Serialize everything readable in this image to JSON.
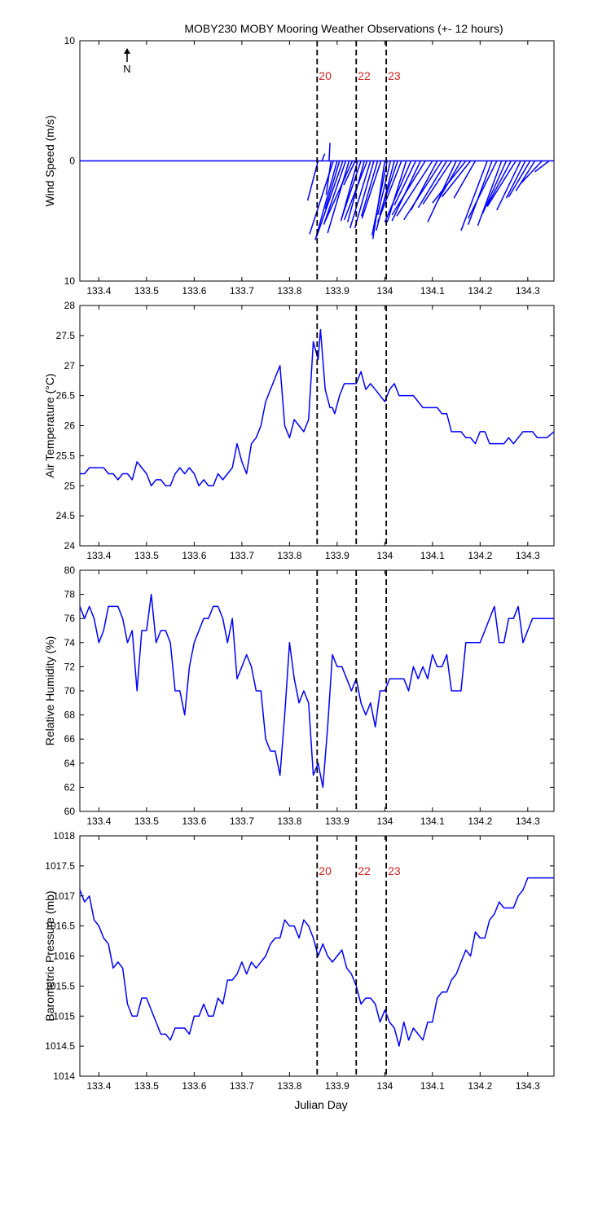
{
  "figure_title": "MOBY230 MOBY Mooring Weather Observations (+- 12 hours)",
  "x_axis_label": "Julian Day",
  "north_label": "N",
  "colors": {
    "series": "#0000ff",
    "marker_label": "#cc2222",
    "axes": "#000000"
  },
  "chart_data": [
    {
      "type": "quiver",
      "ylabel": "Wind Speed (m/s)",
      "xlim": [
        133.36,
        134.355
      ],
      "ylim": [
        -10,
        10
      ],
      "yticks": [
        10,
        0,
        10
      ],
      "xticks": [
        133.4,
        133.5,
        133.6,
        133.7,
        133.8,
        133.9,
        134,
        134.1,
        134.2,
        134.3
      ],
      "markers": [
        {
          "x": 133.858,
          "label": "20"
        },
        {
          "x": 133.94,
          "label": "22"
        },
        {
          "x": 134.003,
          "label": "23"
        }
      ],
      "vectors": [
        {
          "x": 133.86,
          "u": -0.022,
          "v": -3.3
        },
        {
          "x": 133.868,
          "u": 0.006,
          "v": 0.6
        },
        {
          "x": 133.883,
          "u": 0.002,
          "v": 1.5
        },
        {
          "x": 133.887,
          "u": -0.01,
          "v": -2.8
        },
        {
          "x": 133.892,
          "u": -0.05,
          "v": -6.1
        },
        {
          "x": 133.9,
          "u": -0.046,
          "v": -6.6
        },
        {
          "x": 133.905,
          "u": -0.03,
          "v": -4.0
        },
        {
          "x": 133.912,
          "u": -0.055,
          "v": -6.3
        },
        {
          "x": 133.918,
          "u": -0.046,
          "v": -5.3
        },
        {
          "x": 133.925,
          "u": -0.045,
          "v": -6.0
        },
        {
          "x": 133.932,
          "u": -0.058,
          "v": -5.1
        },
        {
          "x": 133.938,
          "u": -0.024,
          "v": -2.0
        },
        {
          "x": 133.943,
          "u": -0.035,
          "v": -5.0
        },
        {
          "x": 133.95,
          "u": -0.04,
          "v": -4.7
        },
        {
          "x": 133.957,
          "u": -0.035,
          "v": -5.1
        },
        {
          "x": 133.963,
          "u": -0.048,
          "v": -4.9
        },
        {
          "x": 133.97,
          "u": -0.043,
          "v": -5.6
        },
        {
          "x": 133.977,
          "u": -0.04,
          "v": -5.6
        },
        {
          "x": 133.985,
          "u": -0.034,
          "v": -4.6
        },
        {
          "x": 133.992,
          "u": -0.04,
          "v": -4.8
        },
        {
          "x": 134.0,
          "u": -0.025,
          "v": -6.5
        },
        {
          "x": 134.005,
          "u": -0.032,
          "v": -6.2
        },
        {
          "x": 134.012,
          "u": -0.027,
          "v": -4.5
        },
        {
          "x": 134.02,
          "u": -0.038,
          "v": -5.8
        },
        {
          "x": 134.027,
          "u": -0.038,
          "v": -4.5
        },
        {
          "x": 134.035,
          "u": -0.05,
          "v": -5.1
        },
        {
          "x": 134.045,
          "u": -0.04,
          "v": -5.1
        },
        {
          "x": 134.055,
          "u": -0.055,
          "v": -5.1
        },
        {
          "x": 134.065,
          "u": -0.045,
          "v": -3.7
        },
        {
          "x": 134.075,
          "u": -0.06,
          "v": -5.0
        },
        {
          "x": 134.085,
          "u": -0.07,
          "v": -4.5
        },
        {
          "x": 134.1,
          "u": -0.075,
          "v": -4.6
        },
        {
          "x": 134.11,
          "u": -0.055,
          "v": -4.1
        },
        {
          "x": 134.12,
          "u": -0.08,
          "v": -4.9
        },
        {
          "x": 134.13,
          "u": -0.06,
          "v": -3.9
        },
        {
          "x": 134.14,
          "u": -0.06,
          "v": -3.6
        },
        {
          "x": 134.15,
          "u": -0.06,
          "v": -5.1
        },
        {
          "x": 134.16,
          "u": -0.05,
          "v": -3.4
        },
        {
          "x": 134.17,
          "u": -0.07,
          "v": -3.5
        },
        {
          "x": 134.18,
          "u": -0.06,
          "v": -3.0
        },
        {
          "x": 134.19,
          "u": -0.045,
          "v": -3.1
        },
        {
          "x": 134.215,
          "u": -0.055,
          "v": -5.8
        },
        {
          "x": 134.225,
          "u": -0.05,
          "v": -5.3
        },
        {
          "x": 134.235,
          "u": -0.06,
          "v": -4.8
        },
        {
          "x": 134.245,
          "u": -0.05,
          "v": -5.4
        },
        {
          "x": 134.255,
          "u": -0.05,
          "v": -4.4
        },
        {
          "x": 134.265,
          "u": -0.05,
          "v": -3.7
        },
        {
          "x": 134.275,
          "u": -0.06,
          "v": -3.8
        },
        {
          "x": 134.285,
          "u": -0.05,
          "v": -4.1
        },
        {
          "x": 134.295,
          "u": -0.04,
          "v": -3.1
        },
        {
          "x": 134.305,
          "u": -0.045,
          "v": -3.0
        },
        {
          "x": 134.315,
          "u": -0.04,
          "v": -2.5
        },
        {
          "x": 134.33,
          "u": -0.045,
          "v": -1.9
        },
        {
          "x": 134.345,
          "u": -0.03,
          "v": -0.9
        }
      ]
    },
    {
      "type": "line",
      "ylabel": "Air Temperature (°C)",
      "xlim": [
        133.36,
        134.355
      ],
      "ylim": [
        24,
        28
      ],
      "yticks": [
        24,
        24.5,
        25,
        25.5,
        26,
        26.5,
        27,
        27.5,
        28
      ],
      "xticks": [
        133.4,
        133.5,
        133.6,
        133.7,
        133.8,
        133.9,
        134,
        134.1,
        134.2,
        134.3
      ],
      "markers": [
        {
          "x": 133.858
        },
        {
          "x": 133.94
        },
        {
          "x": 134.003
        }
      ],
      "x": [
        133.36,
        133.37,
        133.38,
        133.39,
        133.4,
        133.41,
        133.42,
        133.43,
        133.44,
        133.45,
        133.46,
        133.47,
        133.48,
        133.49,
        133.5,
        133.51,
        133.52,
        133.53,
        133.54,
        133.55,
        133.56,
        133.57,
        133.58,
        133.59,
        133.6,
        133.61,
        133.62,
        133.63,
        133.64,
        133.65,
        133.66,
        133.67,
        133.68,
        133.69,
        133.7,
        133.71,
        133.72,
        133.73,
        133.74,
        133.75,
        133.76,
        133.77,
        133.78,
        133.79,
        133.8,
        133.81,
        133.82,
        133.83,
        133.84,
        133.85,
        133.86,
        133.865,
        133.875,
        133.885,
        133.89,
        133.895,
        133.905,
        133.915,
        133.925,
        133.935,
        133.94,
        133.95,
        133.96,
        133.97,
        133.98,
        133.99,
        134,
        134.01,
        134.02,
        134.03,
        134.04,
        134.05,
        134.06,
        134.07,
        134.08,
        134.09,
        134.1,
        134.11,
        134.12,
        134.13,
        134.14,
        134.15,
        134.16,
        134.17,
        134.18,
        134.19,
        134.2,
        134.21,
        134.22,
        134.23,
        134.24,
        134.25,
        134.26,
        134.27,
        134.28,
        134.29,
        134.3,
        134.31,
        134.32,
        134.33,
        134.34,
        134.355
      ],
      "y": [
        25.2,
        25.2,
        25.3,
        25.3,
        25.3,
        25.3,
        25.2,
        25.2,
        25.1,
        25.2,
        25.2,
        25.1,
        25.4,
        25.3,
        25.2,
        25.0,
        25.1,
        25.1,
        25.0,
        25.0,
        25.2,
        25.3,
        25.2,
        25.3,
        25.2,
        25.0,
        25.1,
        25.0,
        25.0,
        25.2,
        25.1,
        25.2,
        25.3,
        25.7,
        25.4,
        25.2,
        25.7,
        25.8,
        26.0,
        26.4,
        26.6,
        26.8,
        27.0,
        26.0,
        25.8,
        26.1,
        26.0,
        25.9,
        26.1,
        27.4,
        27.1,
        27.6,
        26.6,
        26.3,
        26.3,
        26.2,
        26.5,
        26.7,
        26.7,
        26.7,
        26.7,
        26.9,
        26.6,
        26.7,
        26.6,
        26.5,
        26.4,
        26.6,
        26.7,
        26.5,
        26.5,
        26.5,
        26.5,
        26.4,
        26.3,
        26.3,
        26.3,
        26.3,
        26.2,
        26.2,
        25.9,
        25.9,
        25.9,
        25.8,
        25.8,
        25.7,
        25.9,
        25.9,
        25.7,
        25.7,
        25.7,
        25.7,
        25.8,
        25.7,
        25.8,
        25.9,
        25.9,
        25.9,
        25.8,
        25.8,
        25.8,
        25.9
      ]
    },
    {
      "type": "line",
      "ylabel": "Relative Humidity (%)",
      "xlim": [
        133.36,
        134.355
      ],
      "ylim": [
        60,
        80
      ],
      "yticks": [
        60,
        62,
        64,
        66,
        68,
        70,
        72,
        74,
        76,
        78,
        80
      ],
      "xticks": [
        133.4,
        133.5,
        133.6,
        133.7,
        133.8,
        133.9,
        134,
        134.1,
        134.2,
        134.3
      ],
      "markers": [
        {
          "x": 133.858
        },
        {
          "x": 133.94
        },
        {
          "x": 134.003
        }
      ],
      "x": [
        133.36,
        133.37,
        133.38,
        133.39,
        133.4,
        133.41,
        133.42,
        133.43,
        133.44,
        133.45,
        133.46,
        133.47,
        133.48,
        133.49,
        133.5,
        133.51,
        133.52,
        133.53,
        133.54,
        133.55,
        133.56,
        133.57,
        133.58,
        133.59,
        133.6,
        133.61,
        133.62,
        133.63,
        133.64,
        133.65,
        133.66,
        133.67,
        133.68,
        133.69,
        133.7,
        133.71,
        133.72,
        133.73,
        133.74,
        133.75,
        133.76,
        133.77,
        133.78,
        133.79,
        133.8,
        133.81,
        133.82,
        133.83,
        133.84,
        133.85,
        133.86,
        133.87,
        133.88,
        133.89,
        133.9,
        133.91,
        133.92,
        133.93,
        133.94,
        133.95,
        133.96,
        133.97,
        133.98,
        133.99,
        134,
        134.01,
        134.02,
        134.03,
        134.04,
        134.05,
        134.06,
        134.07,
        134.08,
        134.09,
        134.1,
        134.11,
        134.12,
        134.13,
        134.14,
        134.15,
        134.16,
        134.17,
        134.18,
        134.19,
        134.2,
        134.21,
        134.22,
        134.23,
        134.24,
        134.25,
        134.26,
        134.27,
        134.28,
        134.29,
        134.3,
        134.31,
        134.32,
        134.33,
        134.34,
        134.355
      ],
      "y": [
        77,
        76,
        77,
        76,
        74,
        75,
        77,
        77,
        77,
        76,
        74,
        75,
        70,
        75,
        75,
        78,
        74,
        75,
        75,
        74,
        70,
        70,
        68,
        72,
        74,
        75,
        76,
        76,
        77,
        77,
        76,
        74,
        76,
        71,
        72,
        73,
        72,
        70,
        70,
        66,
        65,
        65,
        63,
        68,
        74,
        71,
        69,
        70,
        69,
        63,
        64,
        62,
        67,
        73,
        72,
        72,
        71,
        70,
        71,
        69,
        68,
        69,
        67,
        70,
        70,
        71,
        71,
        71,
        71,
        70,
        72,
        71,
        72,
        71,
        73,
        72,
        72,
        73,
        70,
        70,
        70,
        74,
        74,
        74,
        74,
        75,
        76,
        77,
        74,
        74,
        76,
        76,
        77,
        74,
        75,
        76,
        76,
        76,
        76,
        76
      ]
    },
    {
      "type": "line",
      "ylabel": "Barometric Pressure (mb)",
      "xlim": [
        133.36,
        134.355
      ],
      "ylim": [
        1014,
        1018
      ],
      "yticks": [
        1014,
        1014.5,
        1015,
        1015.5,
        1016,
        1016.5,
        1017,
        1017.5,
        1018
      ],
      "xticks": [
        133.4,
        133.5,
        133.6,
        133.7,
        133.8,
        133.9,
        134,
        134.1,
        134.2,
        134.3
      ],
      "markers": [
        {
          "x": 133.858,
          "label": "20"
        },
        {
          "x": 133.94,
          "label": "22"
        },
        {
          "x": 134.003,
          "label": "23"
        }
      ],
      "x": [
        133.36,
        133.37,
        133.38,
        133.39,
        133.4,
        133.41,
        133.42,
        133.43,
        133.44,
        133.45,
        133.46,
        133.47,
        133.48,
        133.49,
        133.5,
        133.51,
        133.52,
        133.53,
        133.54,
        133.55,
        133.56,
        133.57,
        133.58,
        133.59,
        133.6,
        133.61,
        133.62,
        133.63,
        133.64,
        133.65,
        133.66,
        133.67,
        133.68,
        133.69,
        133.7,
        133.71,
        133.72,
        133.73,
        133.74,
        133.75,
        133.76,
        133.77,
        133.78,
        133.79,
        133.8,
        133.81,
        133.82,
        133.83,
        133.84,
        133.85,
        133.86,
        133.87,
        133.88,
        133.89,
        133.9,
        133.91,
        133.92,
        133.93,
        133.94,
        133.95,
        133.96,
        133.97,
        133.98,
        133.99,
        134,
        134.01,
        134.02,
        134.03,
        134.04,
        134.05,
        134.06,
        134.07,
        134.08,
        134.09,
        134.1,
        134.11,
        134.12,
        134.13,
        134.14,
        134.15,
        134.16,
        134.17,
        134.18,
        134.19,
        134.2,
        134.21,
        134.22,
        134.23,
        134.24,
        134.25,
        134.26,
        134.27,
        134.28,
        134.29,
        134.3,
        134.31,
        134.32,
        134.33,
        134.34,
        134.355
      ],
      "y": [
        1017.1,
        1016.9,
        1017.0,
        1016.6,
        1016.5,
        1016.3,
        1016.2,
        1015.8,
        1015.9,
        1015.8,
        1015.2,
        1015.0,
        1015.0,
        1015.3,
        1015.3,
        1015.1,
        1014.9,
        1014.7,
        1014.7,
        1014.6,
        1014.8,
        1014.8,
        1014.8,
        1014.7,
        1015.0,
        1015.0,
        1015.2,
        1015.0,
        1015.0,
        1015.3,
        1015.2,
        1015.6,
        1015.6,
        1015.7,
        1015.9,
        1015.7,
        1015.9,
        1015.8,
        1015.9,
        1016.0,
        1016.2,
        1016.3,
        1016.3,
        1016.6,
        1016.5,
        1016.5,
        1016.3,
        1016.6,
        1016.5,
        1016.3,
        1016.0,
        1016.2,
        1016.0,
        1015.9,
        1016.0,
        1016.1,
        1015.8,
        1015.7,
        1015.5,
        1015.2,
        1015.3,
        1015.3,
        1015.2,
        1014.9,
        1015.1,
        1014.9,
        1014.8,
        1014.5,
        1014.9,
        1014.6,
        1014.8,
        1014.7,
        1014.6,
        1014.9,
        1014.9,
        1015.3,
        1015.4,
        1015.4,
        1015.6,
        1015.7,
        1015.9,
        1016.1,
        1016.0,
        1016.4,
        1016.3,
        1016.3,
        1016.6,
        1016.7,
        1016.9,
        1016.8,
        1016.8,
        1016.8,
        1017.0,
        1017.1,
        1017.3,
        1017.3,
        1017.3,
        1017.3,
        1017.3,
        1017.3
      ]
    }
  ]
}
